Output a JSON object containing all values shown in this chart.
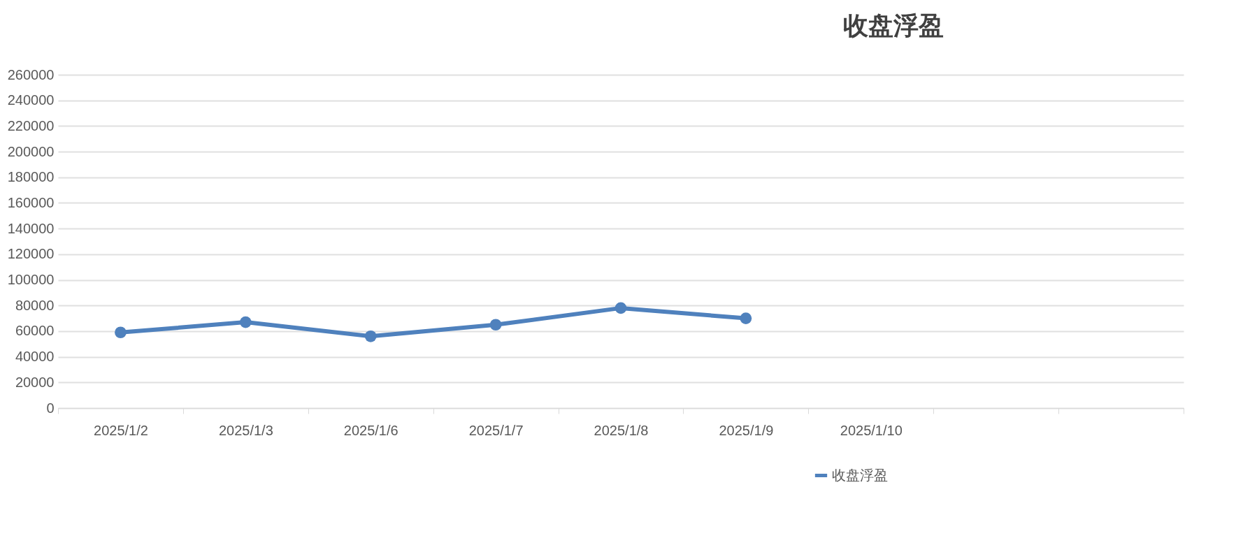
{
  "chart_data": {
    "type": "line",
    "title": "收盘浮盈",
    "categories": [
      "2025/1/2",
      "2025/1/3",
      "2025/1/6",
      "2025/1/7",
      "2025/1/8",
      "2025/1/9",
      "2025/1/10",
      null,
      null
    ],
    "series": [
      {
        "name": "收盘浮盈",
        "color": "#4f81bd",
        "values": [
          59000,
          67000,
          56000,
          65000,
          78000,
          70000,
          null,
          null,
          null
        ]
      }
    ],
    "ylim": [
      0,
      260000
    ],
    "yticks": [
      0,
      20000,
      40000,
      60000,
      80000,
      100000,
      120000,
      140000,
      160000,
      180000,
      200000,
      220000,
      240000,
      260000
    ],
    "grid": "y",
    "legend": "bottom right",
    "marker": "circle",
    "line_style": "solid"
  }
}
